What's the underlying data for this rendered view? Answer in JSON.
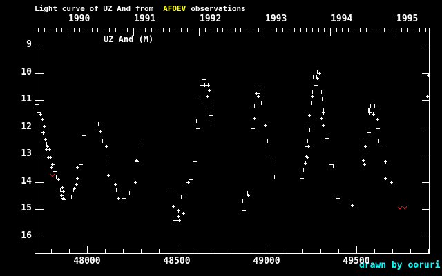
{
  "title": {
    "prefix": "Light curve of UZ And from",
    "highlight": "AFOEV",
    "suffix": "observations"
  },
  "credit": "drawn by ooruri",
  "colors": {
    "background": "#000000",
    "foreground": "#ffffff",
    "afoev_yellow": "#ffff00",
    "credit_cyan": "#00ffff",
    "limit_red": "#cc2222"
  },
  "chart_data": {
    "type": "scatter",
    "series_label": "UZ And (M)",
    "marker": "plus",
    "x_axis": {
      "labels": [
        48000,
        48500,
        49000,
        49500
      ],
      "minor_step": 100,
      "range": [
        47708,
        49908
      ]
    },
    "top_axis": {
      "years": [
        "1990",
        "1991",
        "1992",
        "1993",
        "1994",
        "1995"
      ],
      "year_start_jd": [
        47892.5,
        48257.5,
        48622.5,
        48988.5,
        49353.5,
        49718.5
      ]
    },
    "y_axis": {
      "ticks": [
        9,
        10,
        11,
        12,
        13,
        14,
        15,
        16
      ],
      "range": [
        8.3,
        16.65
      ],
      "inverted": true
    },
    "points": [
      [
        47720,
        11.15
      ],
      [
        47730,
        11.45
      ],
      [
        47740,
        11.5
      ],
      [
        47750,
        11.7
      ],
      [
        47755,
        12.2
      ],
      [
        47760,
        11.95
      ],
      [
        47765,
        12.45
      ],
      [
        47773,
        12.6
      ],
      [
        47773,
        12.8
      ],
      [
        47777,
        12.7
      ],
      [
        47785,
        13.1
      ],
      [
        47788,
        12.8
      ],
      [
        47796,
        13.1
      ],
      [
        47800,
        13.45
      ],
      [
        47804,
        13.15
      ],
      [
        47808,
        13.35
      ],
      [
        47819,
        13.6
      ],
      [
        47827,
        13.8
      ],
      [
        47840,
        13.9
      ],
      [
        47850,
        14.3
      ],
      [
        47858,
        14.5
      ],
      [
        47862,
        14.2
      ],
      [
        47865,
        14.35
      ],
      [
        47865,
        14.6
      ],
      [
        47869,
        14.65
      ],
      [
        47912,
        14.55
      ],
      [
        47923,
        14.3
      ],
      [
        47927,
        14.25
      ],
      [
        47938,
        14.1
      ],
      [
        47946,
        13.85
      ],
      [
        47946,
        13.45
      ],
      [
        47965,
        13.35
      ],
      [
        47981,
        12.3
      ],
      [
        48062,
        11.85
      ],
      [
        48073,
        12.15
      ],
      [
        48085,
        12.5
      ],
      [
        48108,
        12.7
      ],
      [
        48115,
        13.15
      ],
      [
        48119,
        13.75
      ],
      [
        48127,
        13.8
      ],
      [
        48158,
        14.1
      ],
      [
        48162,
        14.3
      ],
      [
        48173,
        14.6
      ],
      [
        48204,
        14.6
      ],
      [
        48235,
        14.4
      ],
      [
        48269,
        14.0
      ],
      [
        48273,
        13.2
      ],
      [
        48277,
        13.25
      ],
      [
        48292,
        12.6
      ],
      [
        48465,
        14.3
      ],
      [
        48481,
        14.9
      ],
      [
        48488,
        15.4
      ],
      [
        48508,
        15.05
      ],
      [
        48508,
        15.25
      ],
      [
        48512,
        15.4
      ],
      [
        48523,
        14.55
      ],
      [
        48535,
        15.15
      ],
      [
        48562,
        14.0
      ],
      [
        48577,
        13.9
      ],
      [
        48600,
        13.25
      ],
      [
        48608,
        11.75
      ],
      [
        48615,
        12.05
      ],
      [
        48627,
        10.95
      ],
      [
        48638,
        10.45
      ],
      [
        48650,
        10.25
      ],
      [
        48654,
        10.45
      ],
      [
        48669,
        10.85
      ],
      [
        48673,
        10.45
      ],
      [
        48681,
        10.65
      ],
      [
        48688,
        11.2
      ],
      [
        48688,
        11.55
      ],
      [
        48688,
        11.75
      ],
      [
        48865,
        14.7
      ],
      [
        48873,
        15.05
      ],
      [
        48892,
        14.4
      ],
      [
        48896,
        14.5
      ],
      [
        48923,
        12.05
      ],
      [
        48931,
        11.65
      ],
      [
        48931,
        11.2
      ],
      [
        48942,
        10.75
      ],
      [
        48950,
        10.75
      ],
      [
        48954,
        10.85
      ],
      [
        48962,
        10.55
      ],
      [
        48969,
        11.1
      ],
      [
        48992,
        11.9
      ],
      [
        49000,
        12.6
      ],
      [
        49004,
        12.5
      ],
      [
        49023,
        13.15
      ],
      [
        49042,
        13.8
      ],
      [
        49196,
        13.85
      ],
      [
        49204,
        13.55
      ],
      [
        49215,
        13.3
      ],
      [
        49219,
        13.05
      ],
      [
        49223,
        12.7
      ],
      [
        49227,
        13.1
      ],
      [
        49227,
        12.5
      ],
      [
        49231,
        12.7
      ],
      [
        49235,
        11.85
      ],
      [
        49238,
        11.55
      ],
      [
        49238,
        12.1
      ],
      [
        49250,
        11.1
      ],
      [
        49254,
        10.7
      ],
      [
        49254,
        10.85
      ],
      [
        49258,
        10.15
      ],
      [
        49262,
        10.7
      ],
      [
        49273,
        10.45
      ],
      [
        49277,
        10.15
      ],
      [
        49281,
        9.95
      ],
      [
        49281,
        10.2
      ],
      [
        49292,
        10.0
      ],
      [
        49304,
        10.7
      ],
      [
        49304,
        11.65
      ],
      [
        49308,
        10.95
      ],
      [
        49315,
        11.35
      ],
      [
        49315,
        11.45
      ],
      [
        49315,
        11.9
      ],
      [
        49335,
        12.4
      ],
      [
        49358,
        13.35
      ],
      [
        49369,
        13.4
      ],
      [
        49396,
        14.6
      ],
      [
        49477,
        14.85
      ],
      [
        49538,
        13.2
      ],
      [
        49542,
        13.35
      ],
      [
        49546,
        12.5
      ],
      [
        49546,
        12.9
      ],
      [
        49550,
        12.7
      ],
      [
        49565,
        11.35
      ],
      [
        49569,
        12.2
      ],
      [
        49573,
        11.35
      ],
      [
        49573,
        11.45
      ],
      [
        49577,
        11.2
      ],
      [
        49585,
        11.2
      ],
      [
        49592,
        11.5
      ],
      [
        49600,
        11.2
      ],
      [
        49615,
        11.7
      ],
      [
        49619,
        12.05
      ],
      [
        49623,
        12.5
      ],
      [
        49635,
        12.6
      ],
      [
        49662,
        13.25
      ],
      [
        49662,
        13.85
      ],
      [
        49692,
        14.0
      ],
      [
        49896,
        10.85
      ],
      [
        49900,
        10.1
      ]
    ],
    "fainter_than_points": [
      [
        47808,
        13.75
      ],
      [
        49742,
        14.95
      ],
      [
        49769,
        14.95
      ]
    ]
  }
}
